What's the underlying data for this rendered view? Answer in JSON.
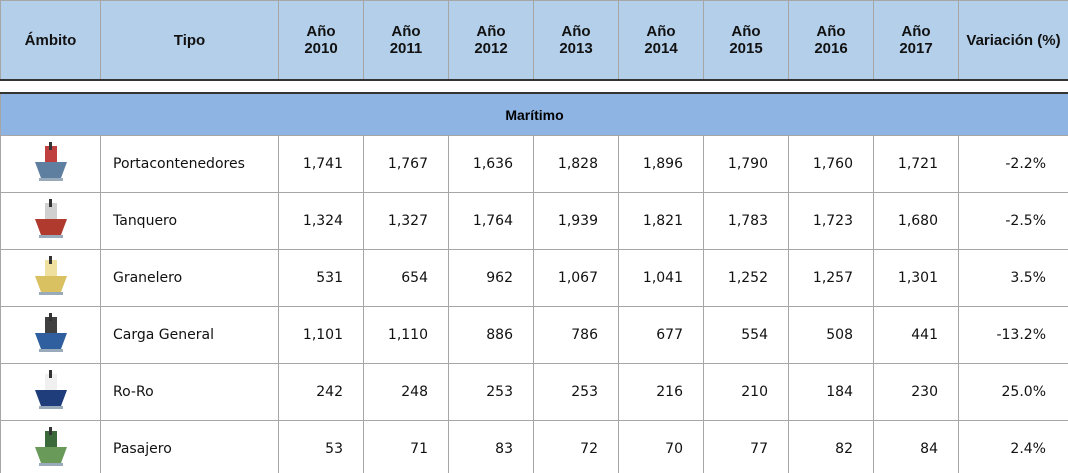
{
  "header": [
    "Ámbito",
    "Tipo",
    "Año 2010",
    "Año 2011",
    "Año 2012",
    "Año 2013",
    "Año 2014",
    "Año 2015",
    "Año 2016",
    "Año 2017",
    "Variación (%)"
  ],
  "section": "Marítimo",
  "rows": [
    {
      "tipo": "Portacontenedores",
      "values": [
        "1,741",
        "1,767",
        "1,636",
        "1,828",
        "1,896",
        "1,790",
        "1,760",
        "1,721"
      ],
      "variacion": "-2.2%"
    },
    {
      "tipo": "Tanquero",
      "values": [
        "1,324",
        "1,327",
        "1,764",
        "1,939",
        "1,821",
        "1,783",
        "1,723",
        "1,680"
      ],
      "variacion": "-2.5%"
    },
    {
      "tipo": "Granelero",
      "values": [
        "531",
        "654",
        "962",
        "1,067",
        "1,041",
        "1,252",
        "1,257",
        "1,301"
      ],
      "variacion": "3.5%"
    },
    {
      "tipo": "Carga General",
      "values": [
        "1,101",
        "1,110",
        "886",
        "786",
        "677",
        "554",
        "508",
        "441"
      ],
      "variacion": "-13.2%"
    },
    {
      "tipo": "Ro-Ro",
      "values": [
        "242",
        "248",
        "253",
        "253",
        "216",
        "210",
        "184",
        "230"
      ],
      "variacion": "25.0%"
    },
    {
      "tipo": "Pasajero",
      "values": [
        "53",
        "71",
        "83",
        "72",
        "70",
        "77",
        "82",
        "84"
      ],
      "variacion": "2.4%"
    }
  ]
}
